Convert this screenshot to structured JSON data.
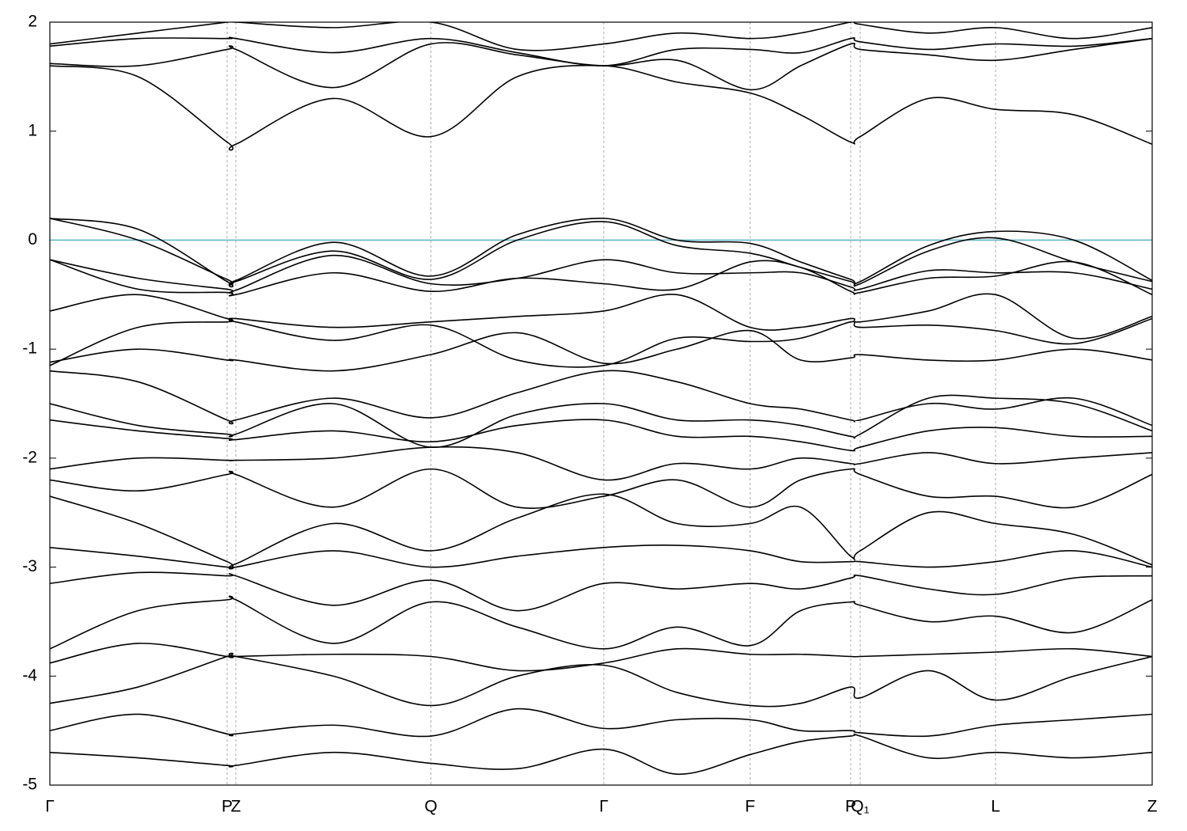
{
  "chart_data": {
    "type": "line",
    "x": [
      0,
      0.08,
      0.1608,
      0.1687,
      0.257,
      0.3457,
      0.424,
      0.5025,
      0.569,
      0.6353,
      0.681,
      0.7265,
      0.7351,
      0.797,
      0.8579,
      0.929,
      1
    ],
    "xlim": [
      0,
      1
    ],
    "xticks": [
      {
        "value": 0,
        "label": "Γ"
      },
      {
        "value": 0.1608,
        "label": "P"
      },
      {
        "value": 0.1687,
        "label": "Z"
      },
      {
        "value": 0.3457,
        "label": "Q"
      },
      {
        "value": 0.5025,
        "label": "Γ"
      },
      {
        "value": 0.6353,
        "label": "F"
      },
      {
        "value": 0.7265,
        "label": "P"
      },
      {
        "value": 0.7351,
        "label": "Q₁"
      },
      {
        "value": 0.8579,
        "label": "L"
      },
      {
        "value": 1,
        "label": "Z"
      }
    ],
    "ylim": [
      -5,
      2
    ],
    "yticks": [
      -5,
      -4,
      -3,
      -2,
      -1,
      0,
      1,
      2
    ],
    "grid": true,
    "color": "#000000",
    "fermi_level": 0,
    "fermi_color": "#5ab4c8",
    "series": [
      {
        "values": [
          1.6,
          1.5,
          0.9,
          0.88,
          1.3,
          0.95,
          1.5,
          1.6,
          1.45,
          1.35,
          1.15,
          0.9,
          0.95,
          1.3,
          1.2,
          1.15,
          0.88
        ]
      },
      {
        "values": [
          1.62,
          1.6,
          1.75,
          1.75,
          1.4,
          1.8,
          1.7,
          1.6,
          1.65,
          1.38,
          1.6,
          1.8,
          1.75,
          1.7,
          1.65,
          1.75,
          1.85
        ]
      },
      {
        "values": [
          1.78,
          1.85,
          1.85,
          1.85,
          1.72,
          1.85,
          1.72,
          1.6,
          1.75,
          1.75,
          1.72,
          1.85,
          1.82,
          1.75,
          1.8,
          1.78,
          1.85
        ]
      },
      {
        "values": [
          1.8,
          1.9,
          2.0,
          2.0,
          1.95,
          2.0,
          1.75,
          1.8,
          1.9,
          1.85,
          1.9,
          2.0,
          1.98,
          1.9,
          1.95,
          1.85,
          1.95
        ]
      },
      {
        "values": [
          0.2,
          0.0,
          -0.36,
          -0.37,
          -0.02,
          -0.33,
          0.05,
          0.2,
          0.0,
          -0.03,
          -0.2,
          -0.36,
          -0.38,
          -0.05,
          0.08,
          0.0,
          -0.37
        ]
      },
      {
        "values": [
          0.2,
          0.1,
          -0.38,
          -0.38,
          -0.1,
          -0.36,
          0.0,
          0.17,
          -0.05,
          -0.12,
          -0.25,
          -0.38,
          -0.4,
          -0.1,
          0.02,
          -0.2,
          -0.38
        ]
      },
      {
        "values": [
          -0.18,
          -0.35,
          -0.45,
          -0.46,
          -0.14,
          -0.4,
          -0.35,
          -0.18,
          -0.3,
          -0.3,
          -0.3,
          -0.43,
          -0.45,
          -0.28,
          -0.3,
          -0.3,
          -0.45
        ]
      },
      {
        "values": [
          -0.18,
          -0.45,
          -0.48,
          -0.5,
          -0.3,
          -0.47,
          -0.35,
          -0.4,
          -0.45,
          -0.2,
          -0.25,
          -0.47,
          -0.48,
          -0.35,
          -0.33,
          -0.2,
          -0.5
        ]
      },
      {
        "values": [
          -0.65,
          -0.5,
          -0.72,
          -0.72,
          -0.8,
          -0.75,
          -0.7,
          -0.65,
          -0.5,
          -0.8,
          -0.8,
          -0.72,
          -0.75,
          -0.65,
          -0.5,
          -0.9,
          -0.7
        ]
      },
      {
        "values": [
          -1.15,
          -0.8,
          -0.75,
          -0.75,
          -0.92,
          -0.78,
          -1.1,
          -1.15,
          -0.9,
          -0.93,
          -0.9,
          -0.75,
          -0.8,
          -0.78,
          -0.83,
          -0.95,
          -0.72
        ]
      },
      {
        "values": [
          -1.12,
          -1.0,
          -1.1,
          -1.1,
          -1.2,
          -1.05,
          -0.85,
          -1.13,
          -1.0,
          -0.83,
          -1.1,
          -1.08,
          -1.05,
          -1.1,
          -1.1,
          -1.0,
          -1.1
        ]
      },
      {
        "values": [
          -1.2,
          -1.3,
          -1.65,
          -1.65,
          -1.45,
          -1.63,
          -1.4,
          -1.2,
          -1.3,
          -1.5,
          -1.55,
          -1.65,
          -1.65,
          -1.5,
          -1.55,
          -1.45,
          -1.7
        ]
      },
      {
        "values": [
          -1.5,
          -1.7,
          -1.78,
          -1.78,
          -1.5,
          -1.9,
          -1.6,
          -1.5,
          -1.65,
          -1.65,
          -1.7,
          -1.8,
          -1.78,
          -1.45,
          -1.45,
          -1.5,
          -1.75
        ]
      },
      {
        "values": [
          -1.65,
          -1.75,
          -1.82,
          -1.83,
          -1.75,
          -1.85,
          -1.7,
          -1.65,
          -1.8,
          -1.8,
          -1.85,
          -1.93,
          -1.9,
          -1.75,
          -1.72,
          -1.8,
          -1.8
        ]
      },
      {
        "values": [
          -2.1,
          -2.0,
          -2.02,
          -2.02,
          -2.0,
          -1.9,
          -1.95,
          -2.2,
          -2.05,
          -2.1,
          -2.0,
          -2.05,
          -2.05,
          -1.95,
          -2.05,
          -2.0,
          -1.95
        ]
      },
      {
        "values": [
          -2.2,
          -2.3,
          -2.15,
          -2.15,
          -2.45,
          -2.1,
          -2.45,
          -2.35,
          -2.2,
          -2.45,
          -2.2,
          -2.1,
          -2.15,
          -2.35,
          -2.35,
          -2.45,
          -2.15
        ]
      },
      {
        "values": [
          -2.35,
          -2.6,
          -2.95,
          -2.97,
          -2.6,
          -2.85,
          -2.55,
          -2.33,
          -2.6,
          -2.6,
          -2.45,
          -2.9,
          -2.85,
          -2.5,
          -2.6,
          -2.7,
          -2.98
        ]
      },
      {
        "values": [
          -2.82,
          -2.9,
          -3.0,
          -3.0,
          -2.85,
          -3.0,
          -2.9,
          -2.82,
          -2.8,
          -2.85,
          -2.95,
          -2.95,
          -2.95,
          -3.0,
          -2.95,
          -2.85,
          -3.0
        ]
      },
      {
        "values": [
          -3.15,
          -3.05,
          -3.08,
          -3.08,
          -3.35,
          -3.12,
          -3.4,
          -3.15,
          -3.2,
          -3.15,
          -3.2,
          -3.1,
          -3.08,
          -3.2,
          -3.25,
          -3.1,
          -3.08
        ]
      },
      {
        "values": [
          -3.75,
          -3.4,
          -3.3,
          -3.3,
          -3.7,
          -3.32,
          -3.55,
          -3.75,
          -3.55,
          -3.72,
          -3.4,
          -3.32,
          -3.35,
          -3.5,
          -3.45,
          -3.6,
          -3.3
        ]
      },
      {
        "values": [
          -3.88,
          -3.7,
          -3.82,
          -3.82,
          -3.8,
          -3.82,
          -3.95,
          -3.88,
          -3.75,
          -3.8,
          -3.8,
          -3.82,
          -3.82,
          -3.8,
          -3.78,
          -3.75,
          -3.82
        ]
      },
      {
        "values": [
          -4.25,
          -4.1,
          -3.82,
          -3.82,
          -4.0,
          -4.27,
          -4.0,
          -3.9,
          -4.15,
          -4.27,
          -4.25,
          -4.1,
          -4.2,
          -3.95,
          -4.22,
          -4.0,
          -3.82
        ]
      },
      {
        "values": [
          -4.5,
          -4.35,
          -4.53,
          -4.53,
          -4.45,
          -4.55,
          -4.3,
          -4.48,
          -4.4,
          -4.4,
          -4.5,
          -4.5,
          -4.52,
          -4.55,
          -4.45,
          -4.4,
          -4.35
        ]
      },
      {
        "values": [
          -4.7,
          -4.75,
          -4.82,
          -4.82,
          -4.7,
          -4.8,
          -4.85,
          -4.67,
          -4.9,
          -4.72,
          -4.6,
          -4.55,
          -4.55,
          -4.75,
          -4.7,
          -4.75,
          -4.7
        ]
      }
    ]
  }
}
